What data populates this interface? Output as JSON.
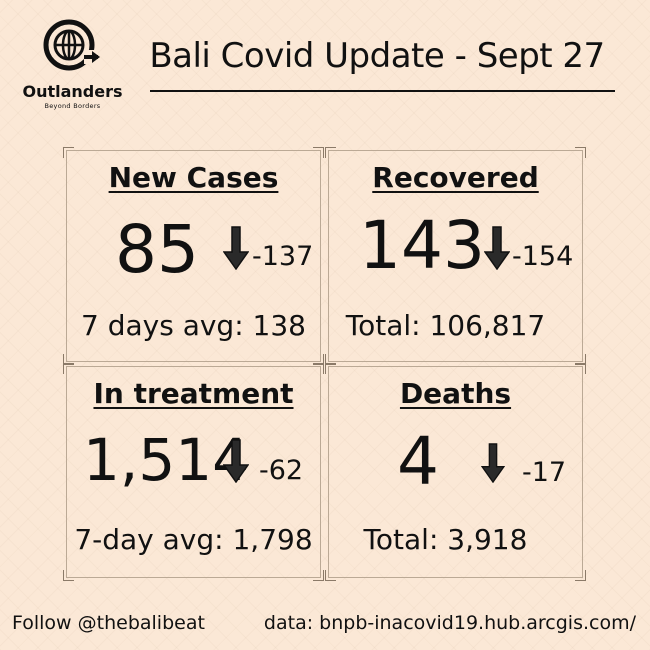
{
  "brand": {
    "name": "Outlanders",
    "tagline": "Beyond Borders"
  },
  "title": "Bali Covid Update - Sept 27",
  "cards": [
    {
      "title": "New Cases",
      "value": "85",
      "change": "-137",
      "footer": "7 days avg: 138"
    },
    {
      "title": "Recovered",
      "value": "143",
      "change": "-154",
      "footer": "Total: 106,817"
    },
    {
      "title": "In treatment",
      "value": "1,514",
      "change": "-62",
      "footer": "7-day avg: 1,798"
    },
    {
      "title": "Deaths",
      "value": "4",
      "change": "-17",
      "footer": "Total: 3,918"
    }
  ],
  "footer": {
    "follow": "Follow @thebalibeat",
    "source": "data: bnpb-inacovid19.hub.arcgis.com/"
  },
  "icons": {
    "logo": "globe-icon",
    "change": "arrow-down-icon"
  },
  "colors": {
    "background": "#fbe8d6",
    "text": "#111111",
    "card_border": "#bba995"
  }
}
